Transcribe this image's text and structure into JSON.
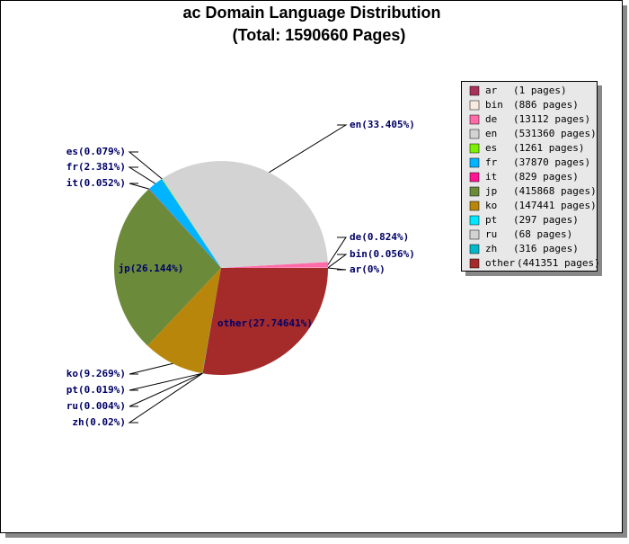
{
  "chart_data": {
    "type": "pie",
    "title": "ac Domain Language Distribution",
    "subtitle": "(Total: 1590660 Pages)",
    "categories": [
      "ar",
      "bin",
      "de",
      "en",
      "es",
      "fr",
      "it",
      "jp",
      "ko",
      "pt",
      "ru",
      "zh",
      "other"
    ],
    "values": [
      1,
      886,
      13112,
      531360,
      1261,
      37870,
      829,
      415868,
      147441,
      297,
      68,
      316,
      441351
    ],
    "value_labels": [
      "(1 pages)",
      "(886 pages)",
      "(13112 pages)",
      "(531360 pages)",
      "(1261 pages)",
      "(37870 pages)",
      "(829 pages)",
      "(415868 pages)",
      "(147441 pages)",
      "(297 pages)",
      "(68 pages)",
      "(316 pages)",
      "(441351 pages)"
    ],
    "slice_labels": [
      "ar(0%)",
      "bin(0.056%)",
      "de(0.824%)",
      "en(33.405%)",
      "es(0.079%)",
      "fr(2.381%)",
      "it(0.052%)",
      "jp(26.144%)",
      "ko(9.269%)",
      "pt(0.019%)",
      "ru(0.004%)",
      "zh(0.02%)",
      "other(27.74641%)"
    ],
    "colors": [
      "#a8325a",
      "#f7ebe0",
      "#ff6aa8",
      "#d3d3d3",
      "#7cf000",
      "#00b4ff",
      "#ff1493",
      "#6b8a3a",
      "#b8860b",
      "#00e8ff",
      "#d3d3d3",
      "#00b8c8",
      "#a52a2a"
    ],
    "legend": "right"
  }
}
